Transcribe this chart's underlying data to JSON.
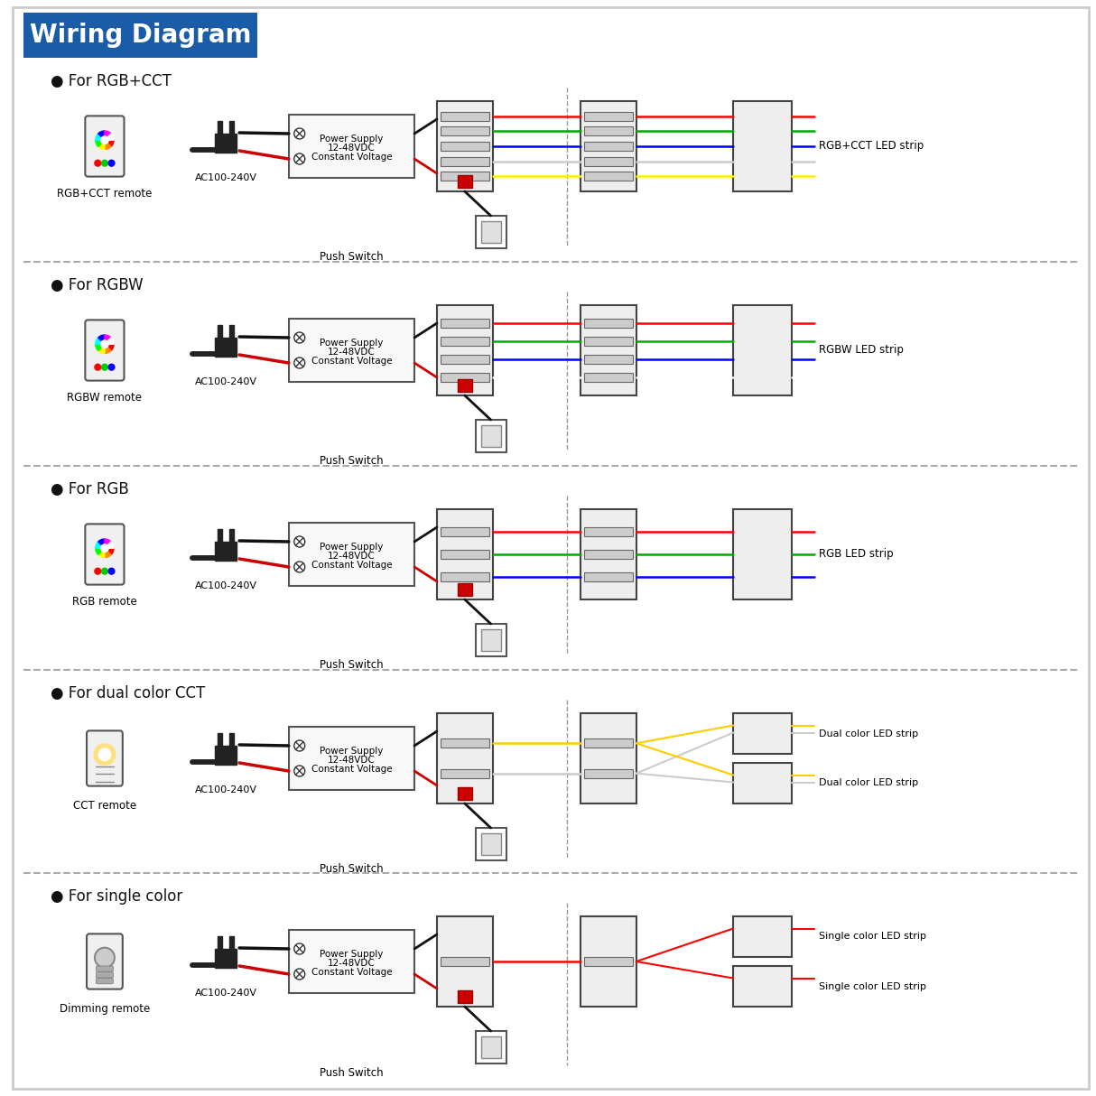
{
  "title": "Wiring Diagram",
  "title_bg": "#1a5ca8",
  "title_text_color": "#ffffff",
  "bg_color": "#ffffff",
  "border_color": "#cccccc",
  "sections": [
    {
      "label": "For RGB+CCT",
      "remote_label": "RGB+CCT remote",
      "strip_label": "RGB+CCT LED strip",
      "wire_colors": [
        "#ff0000",
        "#00aa00",
        "#0000ff",
        "#aaaaaa",
        "#ffff00"
      ],
      "num_channels": 5,
      "dual_output": false
    },
    {
      "label": "For RGBW",
      "remote_label": "RGBW remote",
      "strip_label": "RGBW LED strip",
      "wire_colors": [
        "#ff0000",
        "#00aa00",
        "#0000ff",
        "#ffffff"
      ],
      "num_channels": 4,
      "dual_output": false
    },
    {
      "label": "For RGB",
      "remote_label": "RGB remote",
      "strip_label": "RGB LED strip",
      "wire_colors": [
        "#ff0000",
        "#00aa00",
        "#0000ff"
      ],
      "num_channels": 3,
      "dual_output": false
    },
    {
      "label": "For dual color CCT",
      "remote_label": "CCT remote",
      "strip_label": "Dual color LED strip",
      "wire_colors": [
        "#ffff00",
        "#aaaaaa"
      ],
      "num_channels": 2,
      "dual_output": true
    },
    {
      "label": "For single color",
      "remote_label": "Dimming remote",
      "strip_label": "Single color LED strip",
      "wire_colors": [
        "#ff0000"
      ],
      "num_channels": 1,
      "dual_output": true
    }
  ],
  "power_supply_text": [
    "Power Supply",
    "12-48VDC",
    "Constant Voltage"
  ],
  "push_switch_label": "Push Switch",
  "ac_label": "AC100-240V"
}
